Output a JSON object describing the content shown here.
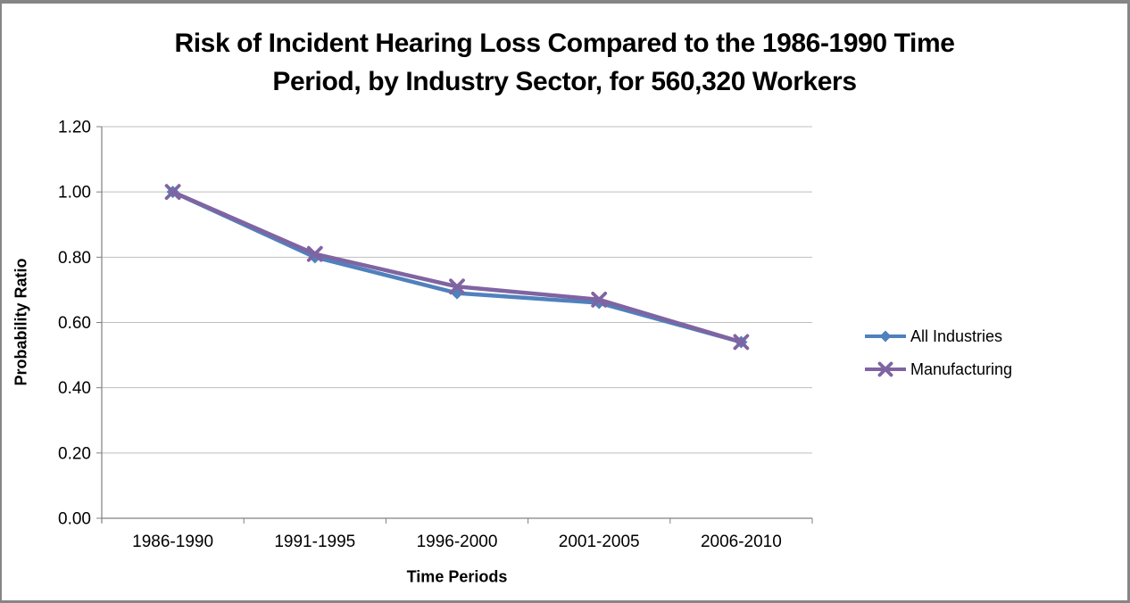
{
  "window": {
    "background_color": "#FFFFFF",
    "border_color": "#868686"
  },
  "chart_data": {
    "type": "line",
    "title": "Risk of Incident Hearing Loss Compared to the 1986-1990 Time Period, by Industry Sector, for 560,320 Workers",
    "title_lines": [
      "Risk of Incident Hearing Loss Compared to the 1986-1990 Time",
      "Period, by Industry Sector, for 560,320 Workers"
    ],
    "xlabel": "Time Periods",
    "ylabel": "Probability Ratio",
    "categories": [
      "1986-1990",
      "1991-1995",
      "1996-2000",
      "2001-2005",
      "2006-2010"
    ],
    "series": [
      {
        "name": "All Industries",
        "color": "#4F81BD",
        "marker": "diamond",
        "values": [
          1.0,
          0.8,
          0.69,
          0.66,
          0.54
        ]
      },
      {
        "name": "Manufacturing",
        "color": "#8064A2",
        "marker": "x",
        "values": [
          1.0,
          0.81,
          0.71,
          0.67,
          0.54
        ]
      }
    ],
    "ylim": [
      0.0,
      1.2
    ],
    "yticks": [
      0.0,
      0.2,
      0.4,
      0.6,
      0.8,
      1.0,
      1.2
    ],
    "ytick_labels": [
      "0.00",
      "0.20",
      "0.40",
      "0.60",
      "0.80",
      "1.00",
      "1.20"
    ],
    "grid": true,
    "legend_position": "right",
    "gridline_color": "#BFBFBF",
    "axis_color": "#808080",
    "text_color": "#000000"
  }
}
